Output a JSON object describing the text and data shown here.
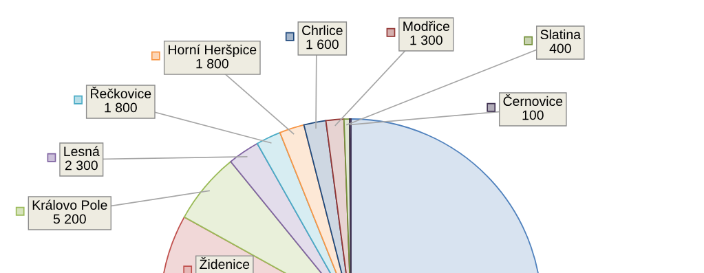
{
  "chart_data": {
    "type": "pie",
    "categories": [
      null,
      "Židenice",
      "Královo Pole",
      "Lesná",
      "Řečkovice",
      "Horní Heršpice",
      "Chrlice",
      "Modřice",
      "Slatina",
      "Černovice"
    ],
    "values": [
      45000,
      26100,
      5200,
      2300,
      1800,
      1800,
      1600,
      1300,
      400,
      100
    ],
    "value_labels": [
      null,
      null,
      "5 200",
      "2 300",
      "1 800",
      "1 800",
      "1 600",
      "1 300",
      "400",
      "100"
    ],
    "colors": [
      "#4f81bd",
      "#c0504d",
      "#9bbb59",
      "#8064a2",
      "#4bacc6",
      "#f79646",
      "#1f497d",
      "#943634",
      "#76923c",
      "#3f3151"
    ]
  }
}
